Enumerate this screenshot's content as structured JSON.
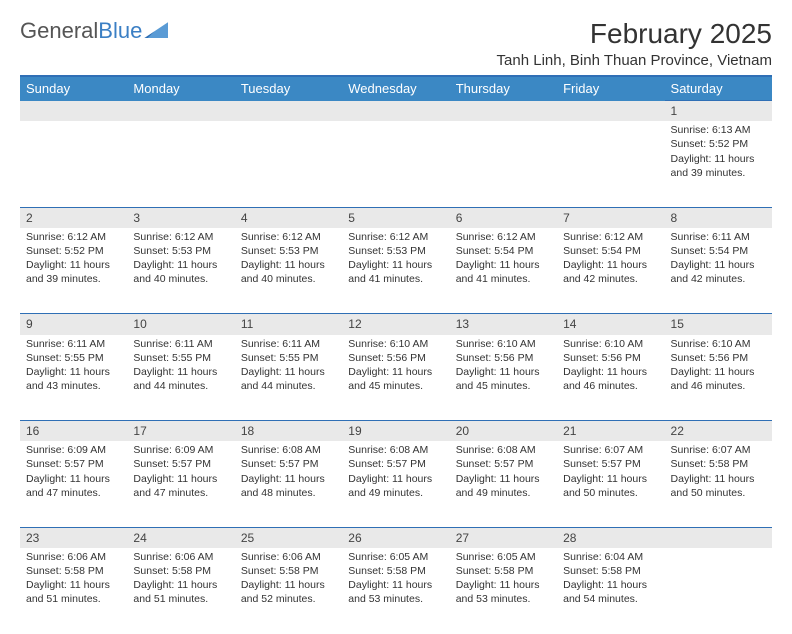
{
  "brand": {
    "part1": "General",
    "part2": "Blue"
  },
  "title": "February 2025",
  "location": "Tanh Linh, Binh Thuan Province, Vietnam",
  "colors": {
    "header_bg": "#3b88c4",
    "header_text": "#ffffff",
    "rule": "#2f6fb5",
    "daynum_bg": "#e9e9e9",
    "body_bg": "#ffffff",
    "text": "#333333"
  },
  "weekdays": [
    "Sunday",
    "Monday",
    "Tuesday",
    "Wednesday",
    "Thursday",
    "Friday",
    "Saturday"
  ],
  "grid": {
    "start_weekday_index": 6,
    "rows": 5,
    "cols": 7
  },
  "days": [
    {
      "n": 1,
      "sunrise": "6:13 AM",
      "sunset": "5:52 PM",
      "daylight": "11 hours and 39 minutes."
    },
    {
      "n": 2,
      "sunrise": "6:12 AM",
      "sunset": "5:52 PM",
      "daylight": "11 hours and 39 minutes."
    },
    {
      "n": 3,
      "sunrise": "6:12 AM",
      "sunset": "5:53 PM",
      "daylight": "11 hours and 40 minutes."
    },
    {
      "n": 4,
      "sunrise": "6:12 AM",
      "sunset": "5:53 PM",
      "daylight": "11 hours and 40 minutes."
    },
    {
      "n": 5,
      "sunrise": "6:12 AM",
      "sunset": "5:53 PM",
      "daylight": "11 hours and 41 minutes."
    },
    {
      "n": 6,
      "sunrise": "6:12 AM",
      "sunset": "5:54 PM",
      "daylight": "11 hours and 41 minutes."
    },
    {
      "n": 7,
      "sunrise": "6:12 AM",
      "sunset": "5:54 PM",
      "daylight": "11 hours and 42 minutes."
    },
    {
      "n": 8,
      "sunrise": "6:11 AM",
      "sunset": "5:54 PM",
      "daylight": "11 hours and 42 minutes."
    },
    {
      "n": 9,
      "sunrise": "6:11 AM",
      "sunset": "5:55 PM",
      "daylight": "11 hours and 43 minutes."
    },
    {
      "n": 10,
      "sunrise": "6:11 AM",
      "sunset": "5:55 PM",
      "daylight": "11 hours and 44 minutes."
    },
    {
      "n": 11,
      "sunrise": "6:11 AM",
      "sunset": "5:55 PM",
      "daylight": "11 hours and 44 minutes."
    },
    {
      "n": 12,
      "sunrise": "6:10 AM",
      "sunset": "5:56 PM",
      "daylight": "11 hours and 45 minutes."
    },
    {
      "n": 13,
      "sunrise": "6:10 AM",
      "sunset": "5:56 PM",
      "daylight": "11 hours and 45 minutes."
    },
    {
      "n": 14,
      "sunrise": "6:10 AM",
      "sunset": "5:56 PM",
      "daylight": "11 hours and 46 minutes."
    },
    {
      "n": 15,
      "sunrise": "6:10 AM",
      "sunset": "5:56 PM",
      "daylight": "11 hours and 46 minutes."
    },
    {
      "n": 16,
      "sunrise": "6:09 AM",
      "sunset": "5:57 PM",
      "daylight": "11 hours and 47 minutes."
    },
    {
      "n": 17,
      "sunrise": "6:09 AM",
      "sunset": "5:57 PM",
      "daylight": "11 hours and 47 minutes."
    },
    {
      "n": 18,
      "sunrise": "6:08 AM",
      "sunset": "5:57 PM",
      "daylight": "11 hours and 48 minutes."
    },
    {
      "n": 19,
      "sunrise": "6:08 AM",
      "sunset": "5:57 PM",
      "daylight": "11 hours and 49 minutes."
    },
    {
      "n": 20,
      "sunrise": "6:08 AM",
      "sunset": "5:57 PM",
      "daylight": "11 hours and 49 minutes."
    },
    {
      "n": 21,
      "sunrise": "6:07 AM",
      "sunset": "5:57 PM",
      "daylight": "11 hours and 50 minutes."
    },
    {
      "n": 22,
      "sunrise": "6:07 AM",
      "sunset": "5:58 PM",
      "daylight": "11 hours and 50 minutes."
    },
    {
      "n": 23,
      "sunrise": "6:06 AM",
      "sunset": "5:58 PM",
      "daylight": "11 hours and 51 minutes."
    },
    {
      "n": 24,
      "sunrise": "6:06 AM",
      "sunset": "5:58 PM",
      "daylight": "11 hours and 51 minutes."
    },
    {
      "n": 25,
      "sunrise": "6:06 AM",
      "sunset": "5:58 PM",
      "daylight": "11 hours and 52 minutes."
    },
    {
      "n": 26,
      "sunrise": "6:05 AM",
      "sunset": "5:58 PM",
      "daylight": "11 hours and 53 minutes."
    },
    {
      "n": 27,
      "sunrise": "6:05 AM",
      "sunset": "5:58 PM",
      "daylight": "11 hours and 53 minutes."
    },
    {
      "n": 28,
      "sunrise": "6:04 AM",
      "sunset": "5:58 PM",
      "daylight": "11 hours and 54 minutes."
    }
  ],
  "labels": {
    "sunrise": "Sunrise:",
    "sunset": "Sunset:",
    "daylight": "Daylight:"
  }
}
